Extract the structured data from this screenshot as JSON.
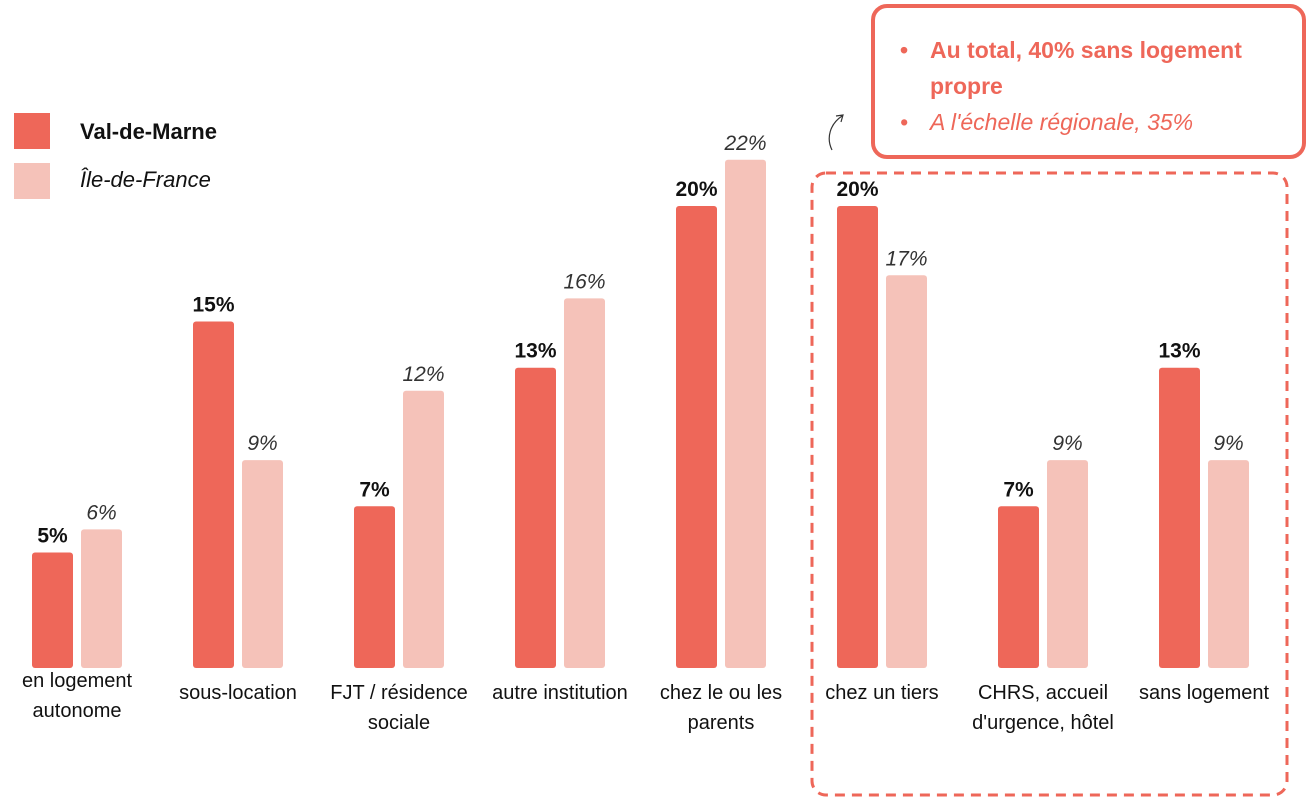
{
  "chart_data": {
    "type": "bar",
    "categories": [
      "en logement autonome",
      "sous-location",
      "FJT / résidence sociale",
      "autre institution",
      "chez le ou les parents",
      "chez un tiers",
      "CHRS, accueil d'urgence, hôtel",
      "sans logement"
    ],
    "series": [
      {
        "name": "Val-de-Marne",
        "color": "#ee6759",
        "values": [
          5,
          15,
          7,
          13,
          20,
          20,
          7,
          13
        ],
        "value_labels": [
          "5%",
          "15%",
          "7%",
          "13%",
          "20%",
          "20%",
          "7%",
          "13%"
        ]
      },
      {
        "name": "Île-de-France",
        "color": "#f5c2b9",
        "values": [
          6,
          9,
          12,
          16,
          22,
          17,
          9,
          9
        ],
        "value_labels": [
          "6%",
          "9%",
          "12%",
          "16%",
          "22%",
          "17%",
          "9%",
          "9%"
        ]
      }
    ],
    "annotations": [
      "Au total, 40% sans logement propre",
      "A l'échelle régionale, 35%"
    ]
  }
}
